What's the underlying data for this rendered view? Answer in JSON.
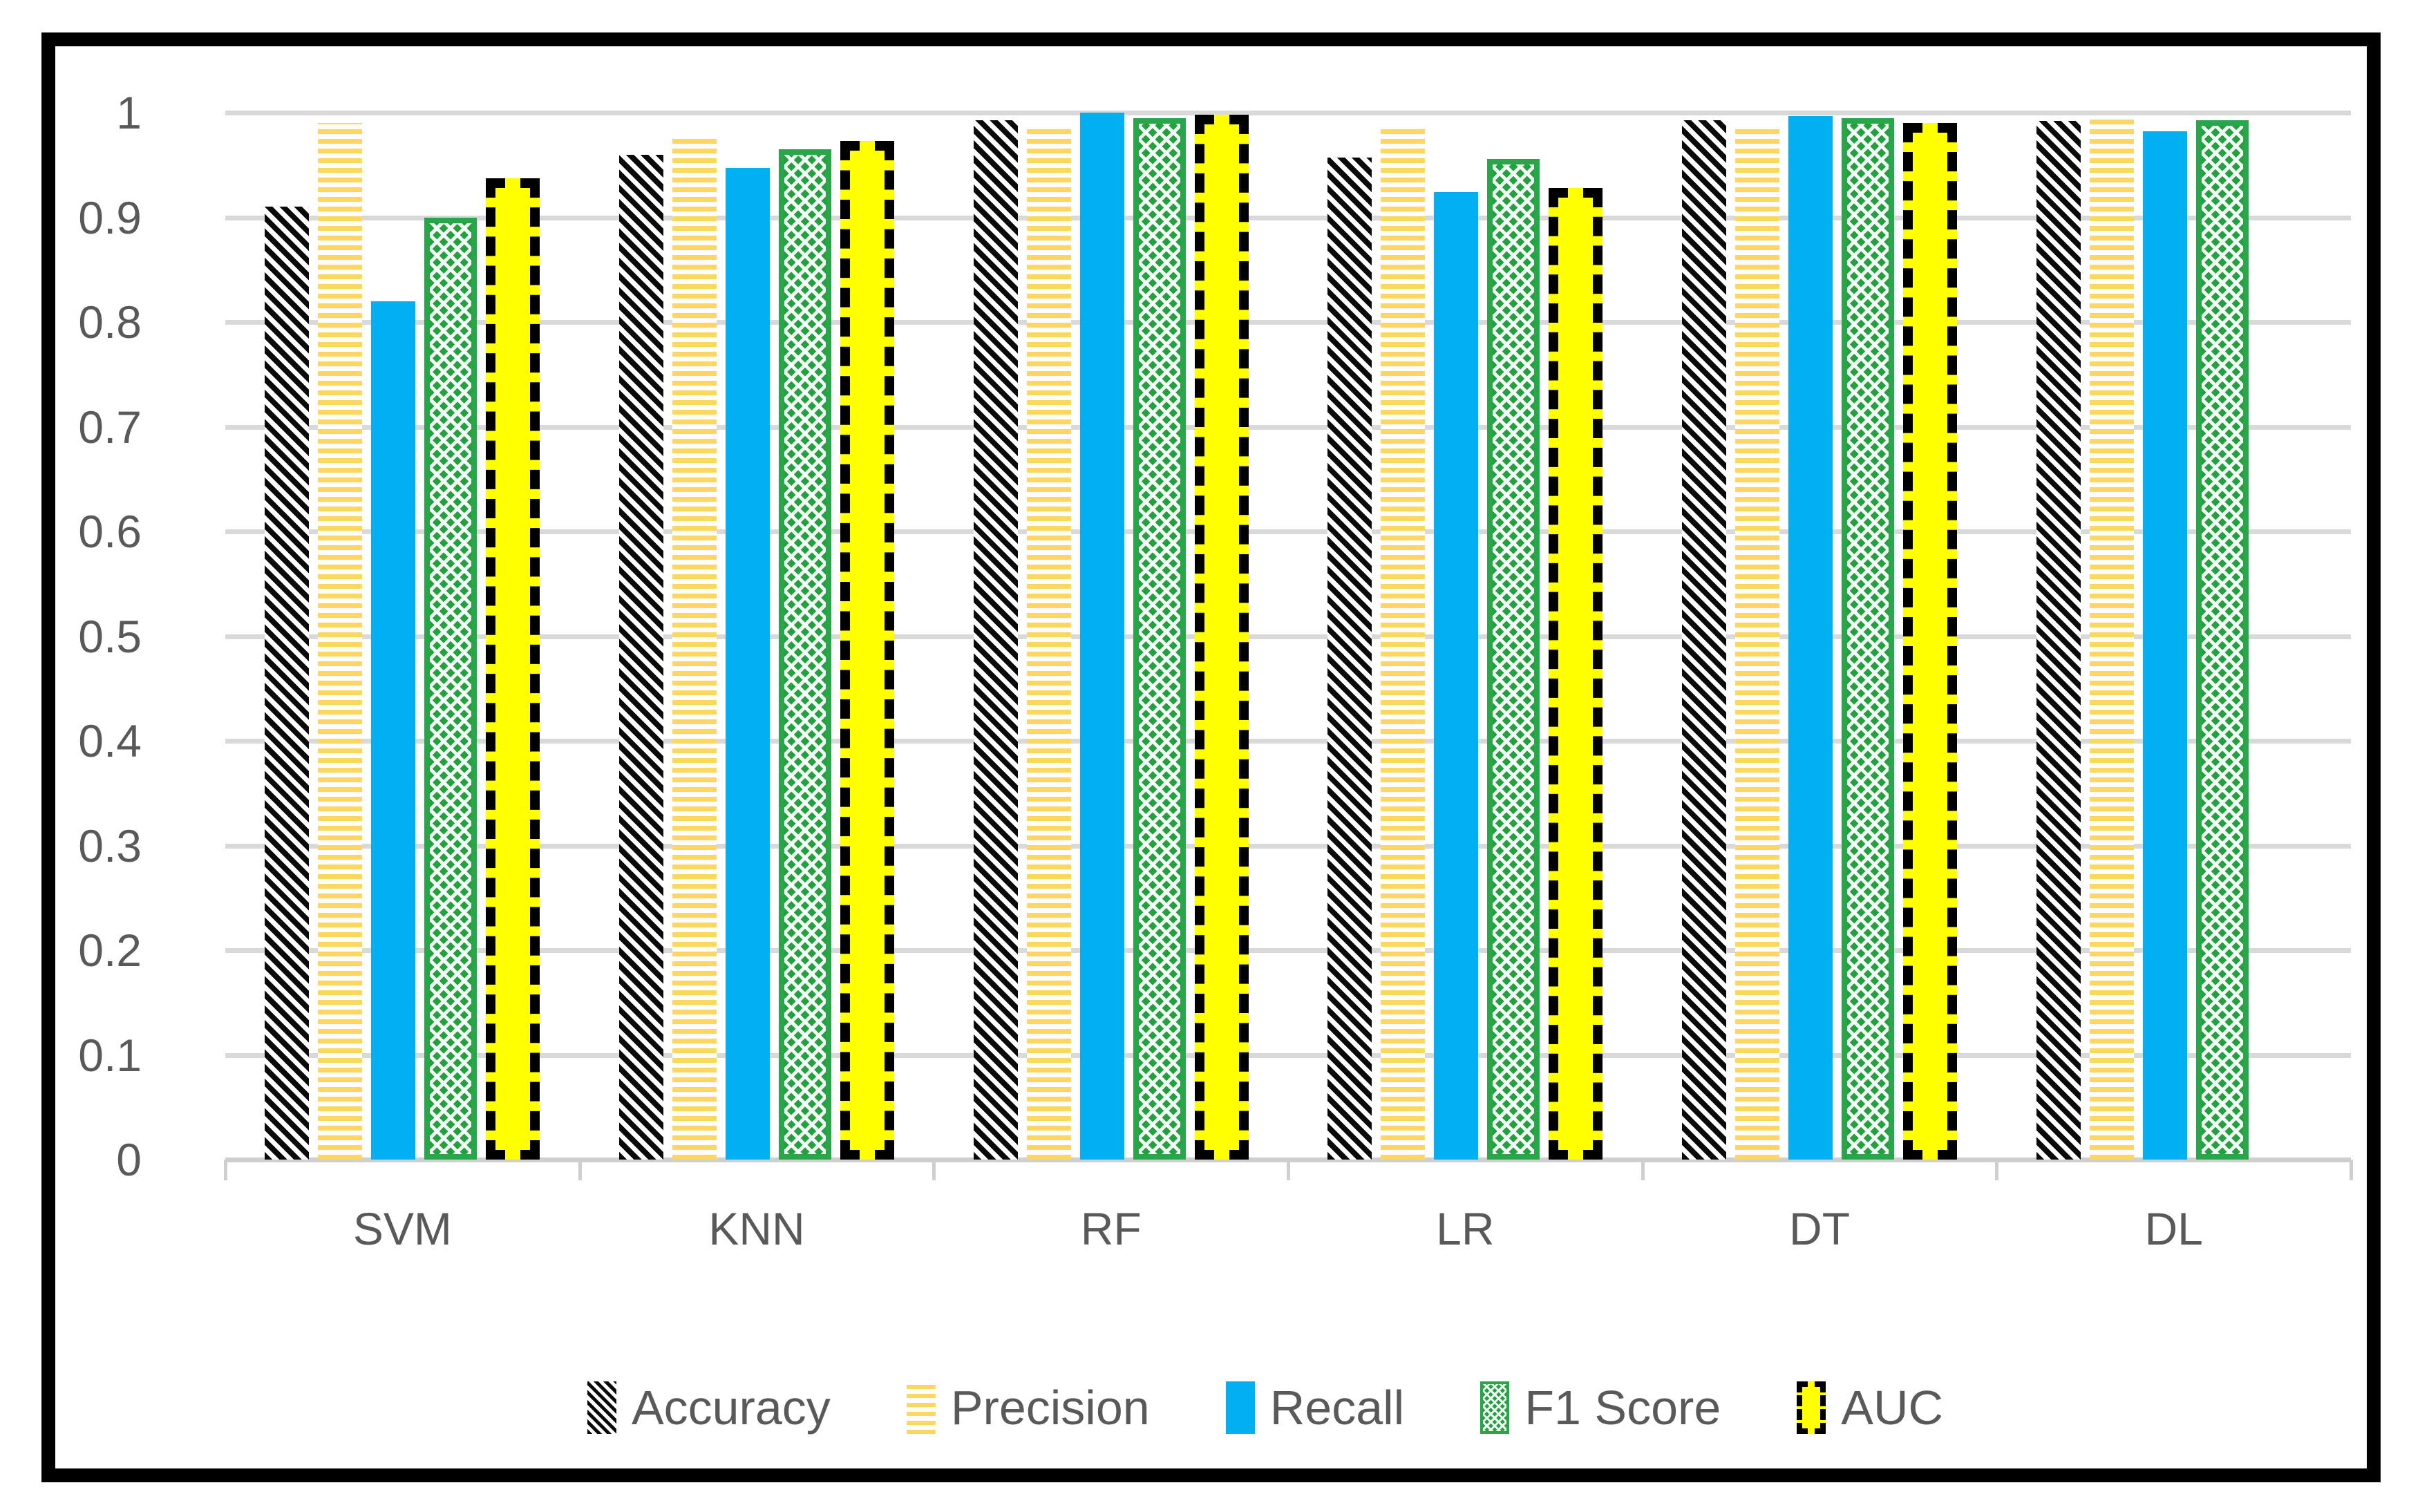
{
  "chart_data": {
    "type": "bar",
    "title": "",
    "categories": [
      "SVM",
      "KNN",
      "RF",
      "LR",
      "DT",
      "DL"
    ],
    "series": [
      {
        "name": "Accuracy",
        "style": "black-diagonal-hatch",
        "values": [
          0.91,
          0.96,
          0.993,
          0.957,
          0.993,
          0.992
        ]
      },
      {
        "name": "Precision",
        "style": "gold-horizontal-stripes",
        "values": [
          0.99,
          0.977,
          0.988,
          0.988,
          0.988,
          0.997
        ]
      },
      {
        "name": "Recall",
        "style": "solid-blue",
        "values": [
          0.82,
          0.947,
          1.0,
          0.924,
          0.997,
          0.982
        ]
      },
      {
        "name": "F1 Score",
        "style": "green-diamond-grid",
        "values": [
          0.9,
          0.965,
          0.995,
          0.956,
          0.995,
          0.993
        ]
      },
      {
        "name": "AUC",
        "style": "yellow-black-dashed-border",
        "values": [
          0.937,
          0.973,
          0.998,
          0.928,
          0.99,
          null
        ]
      }
    ],
    "xlabel": "",
    "ylabel": "",
    "ylim": [
      0,
      1
    ],
    "ytick_labels": [
      "1",
      "0.9",
      "0.8",
      "0.7",
      "0.6",
      "0.5",
      "0.4",
      "0.3",
      "0.2",
      "0.1",
      "0"
    ],
    "ytick_values": [
      1,
      0.9,
      0.8,
      0.7,
      0.6,
      0.5,
      0.4,
      0.3,
      0.2,
      0.1,
      0
    ],
    "grid": "horizontal",
    "legend_position": "bottom",
    "legend_entries": [
      "Accuracy",
      "Precision",
      "Recall",
      "F1 Score",
      "AUC"
    ]
  },
  "colors": {
    "accuracy_hatch": "#0a0a0a",
    "precision_gold": "#ffd75e",
    "recall_blue": "#00b0f0",
    "f1_green": "#22a23f",
    "auc_yellow": "#ffff00",
    "auc_border": "#000000",
    "gridline": "#d9d9d9",
    "axis_line": "#cfcfcf",
    "label_text": "#595959",
    "frame_border": "#000000"
  }
}
